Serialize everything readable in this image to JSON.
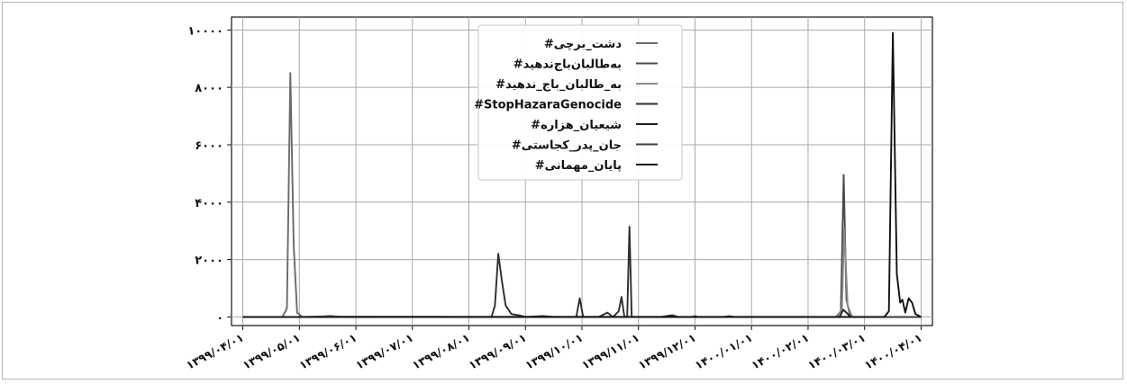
{
  "chart_data": {
    "type": "line",
    "x_ticks": [
      "۱۳۹۹/۰۴/۰۱",
      "۱۳۹۹/۰۵/۰۱",
      "۱۳۹۹/۰۶/۰۱",
      "۱۳۹۹/۰۷/۰۱",
      "۱۳۹۹/۰۸/۰۱",
      "۱۳۹۹/۰۹/۰۱",
      "۱۳۹۹/۱۰/۰۱",
      "۱۳۹۹/۱۱/۰۱",
      "۱۳۹۹/۱۲/۰۱",
      "۱۴۰۰/۰۱/۰۱",
      "۱۴۰۰/۰۲/۰۱",
      "۱۴۰۰/۰۳/۰۱",
      "۱۴۰۰/۰۴/۰۱"
    ],
    "y_ticks": [
      {
        "value": 0,
        "label": "۰"
      },
      {
        "value": 2000,
        "label": "۲۰۰۰"
      },
      {
        "value": 4000,
        "label": "۴۰۰۰"
      },
      {
        "value": 6000,
        "label": "۶۰۰۰"
      },
      {
        "value": 8000,
        "label": "۸۰۰۰"
      },
      {
        "value": 10000,
        "label": "۱۰۰۰۰"
      }
    ],
    "ylim": [
      -300,
      10450
    ],
    "xlim": [
      -0.2,
      12.2
    ],
    "grid": true,
    "legend_position": "top-center",
    "series": [
      {
        "name": "#دشت_برچی",
        "color": "#6a6a6a",
        "points": [
          [
            0,
            0
          ],
          [
            0.7,
            0
          ],
          [
            0.78,
            300
          ],
          [
            0.84,
            8500
          ],
          [
            0.9,
            2500
          ],
          [
            0.96,
            150
          ],
          [
            1.05,
            0
          ],
          [
            1.4,
            20
          ],
          [
            1.55,
            40
          ],
          [
            1.7,
            10
          ],
          [
            12,
            0
          ]
        ]
      },
      {
        "name": "#به‌طالبان‌باج‌ندهید",
        "color": "#4a4a4a",
        "points": [
          [
            0,
            0
          ],
          [
            10.5,
            0
          ],
          [
            10.58,
            200
          ],
          [
            10.63,
            4950
          ],
          [
            10.68,
            600
          ],
          [
            10.75,
            0
          ],
          [
            12,
            0
          ]
        ]
      },
      {
        "name": "#به_طالبان_باج_ندهید",
        "color": "#8a8a8a",
        "points": [
          [
            0,
            0
          ],
          [
            10.52,
            0
          ],
          [
            10.6,
            300
          ],
          [
            10.64,
            3100
          ],
          [
            10.7,
            400
          ],
          [
            10.78,
            0
          ],
          [
            12,
            0
          ]
        ]
      },
      {
        "name": "#StopHazaraGenocide",
        "color": "#2e2e2e",
        "points": [
          [
            0,
            0
          ],
          [
            4.4,
            0
          ],
          [
            4.46,
            400
          ],
          [
            4.52,
            2200
          ],
          [
            4.58,
            1300
          ],
          [
            4.65,
            400
          ],
          [
            4.75,
            100
          ],
          [
            4.9,
            50
          ],
          [
            5.0,
            0
          ],
          [
            5.3,
            30
          ],
          [
            5.5,
            0
          ],
          [
            5.9,
            0
          ],
          [
            5.96,
            650
          ],
          [
            6.02,
            0
          ],
          [
            6.3,
            0
          ],
          [
            6.45,
            150
          ],
          [
            6.55,
            0
          ],
          [
            6.65,
            200
          ],
          [
            6.7,
            700
          ],
          [
            6.75,
            0
          ],
          [
            6.8,
            0
          ],
          [
            6.84,
            3150
          ],
          [
            6.88,
            0
          ],
          [
            7.4,
            0
          ],
          [
            7.6,
            60
          ],
          [
            7.7,
            0
          ],
          [
            12,
            0
          ]
        ]
      },
      {
        "name": "#شیعیان_هزاره",
        "color": "#1e1e1e",
        "points": [
          [
            0,
            0
          ],
          [
            10.56,
            0
          ],
          [
            10.62,
            250
          ],
          [
            10.68,
            150
          ],
          [
            10.75,
            0
          ],
          [
            12,
            0
          ]
        ]
      },
      {
        "name": "#جان_پدر_کجاستی",
        "color": "#3c3c3c",
        "points": [
          [
            0,
            0
          ],
          [
            7.95,
            0
          ],
          [
            8.0,
            30
          ],
          [
            8.05,
            0
          ],
          [
            8.5,
            0
          ],
          [
            8.6,
            25
          ],
          [
            8.7,
            0
          ],
          [
            12,
            0
          ]
        ]
      },
      {
        "name": "#پایان_مهمانی",
        "color": "#111111",
        "points": [
          [
            0,
            0
          ],
          [
            11.35,
            0
          ],
          [
            11.43,
            200
          ],
          [
            11.5,
            9900
          ],
          [
            11.57,
            1500
          ],
          [
            11.63,
            500
          ],
          [
            11.67,
            600
          ],
          [
            11.72,
            150
          ],
          [
            11.78,
            650
          ],
          [
            11.84,
            500
          ],
          [
            11.9,
            100
          ],
          [
            12,
            0
          ]
        ]
      }
    ]
  }
}
